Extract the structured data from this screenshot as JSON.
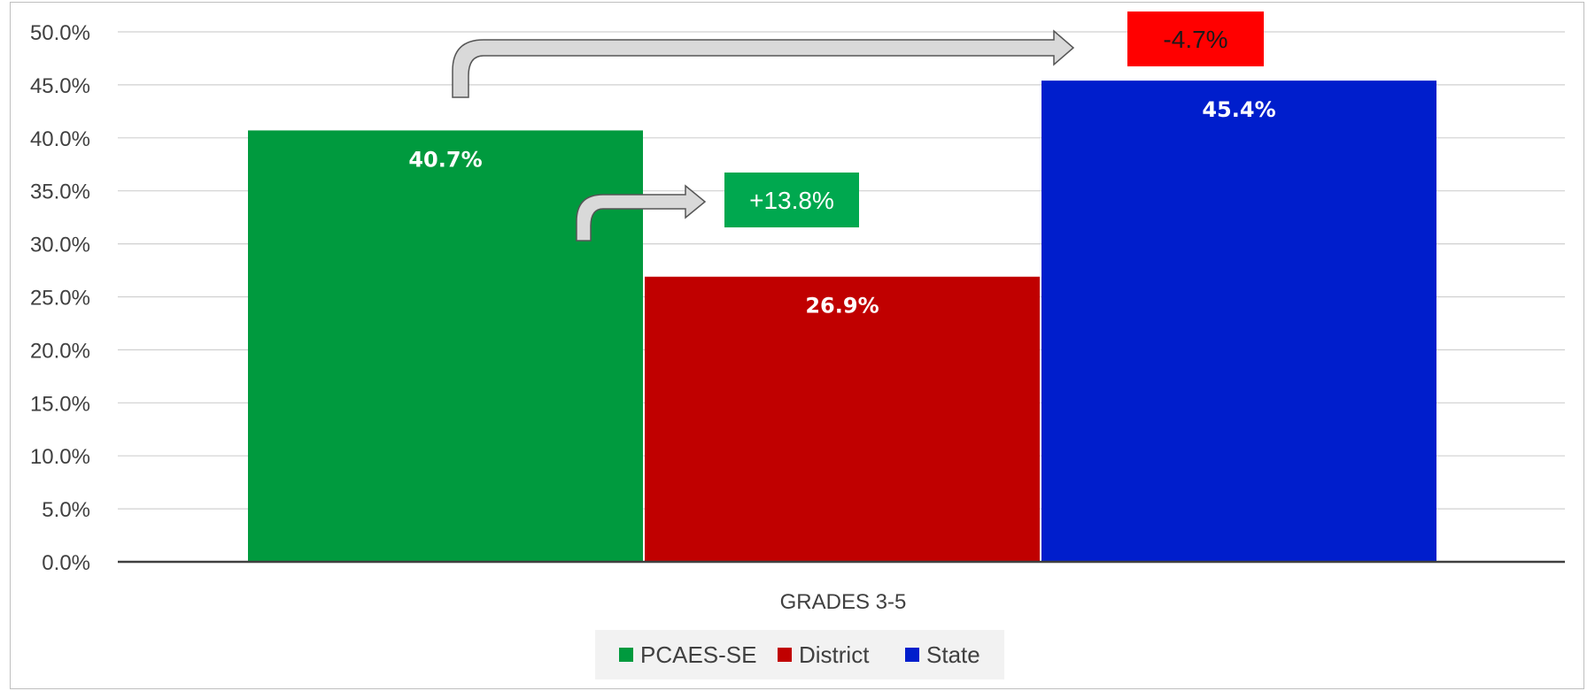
{
  "chart_data": {
    "type": "bar",
    "categories": [
      "GRADES 3-5"
    ],
    "series": [
      {
        "name": "PCAES-SE",
        "values": [
          40.7
        ],
        "label": "40.7%",
        "color": "#009a3e"
      },
      {
        "name": "District",
        "values": [
          26.9
        ],
        "label": "26.9%",
        "color": "#c00000"
      },
      {
        "name": "State",
        "values": [
          45.4
        ],
        "label": "45.4%",
        "color": "#001ecc"
      }
    ],
    "ylim": [
      0,
      50
    ],
    "yticks": [
      "0.0%",
      "5.0%",
      "10.0%",
      "15.0%",
      "20.0%",
      "25.0%",
      "30.0%",
      "35.0%",
      "40.0%",
      "45.0%",
      "50.0%"
    ],
    "grid": true,
    "legend_position": "bottom",
    "annotations": [
      {
        "text": "+13.8%",
        "bg": "#00a84f",
        "color": "#ffffff",
        "from": "PCAES-SE",
        "to": "District"
      },
      {
        "text": "-4.7%",
        "bg": "#ff0000",
        "color": "#1a1a1a",
        "from": "PCAES-SE",
        "to": "State"
      }
    ]
  }
}
